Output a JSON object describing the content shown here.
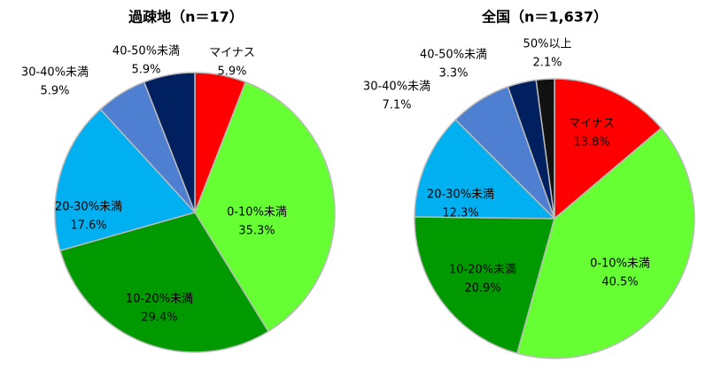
{
  "chart_data": [
    {
      "type": "pie",
      "title": "過疎地（n＝17）",
      "categories": [
        "マイナス",
        "0-10%未満",
        "10-20%未満",
        "20-30%未満",
        "30-40%未満",
        "40-50%未満"
      ],
      "values": [
        5.9,
        35.3,
        29.4,
        17.6,
        5.9,
        5.9
      ],
      "value_labels": [
        "5.9%",
        "35.3%",
        "29.4%",
        "17.6%",
        "5.9%",
        "5.9%"
      ],
      "colors": [
        "#ff0000",
        "#66ff33",
        "#009900",
        "#00b0f0",
        "#4f7fd0",
        "#002060"
      ]
    },
    {
      "type": "pie",
      "title": "全国（n＝1,637）",
      "categories": [
        "マイナス",
        "0-10%未満",
        "10-20%未満",
        "20-30%未満",
        "30-40%未満",
        "40-50%未満",
        "50%以上"
      ],
      "values": [
        13.8,
        40.5,
        20.9,
        12.3,
        7.1,
        3.3,
        2.1
      ],
      "value_labels": [
        "13.8%",
        "40.5%",
        "20.9%",
        "12.3%",
        "7.1%",
        "3.3%",
        "2.1%"
      ],
      "colors": [
        "#ff0000",
        "#66ff33",
        "#009900",
        "#00b0f0",
        "#4f7fd0",
        "#002060",
        "#111111"
      ]
    }
  ]
}
